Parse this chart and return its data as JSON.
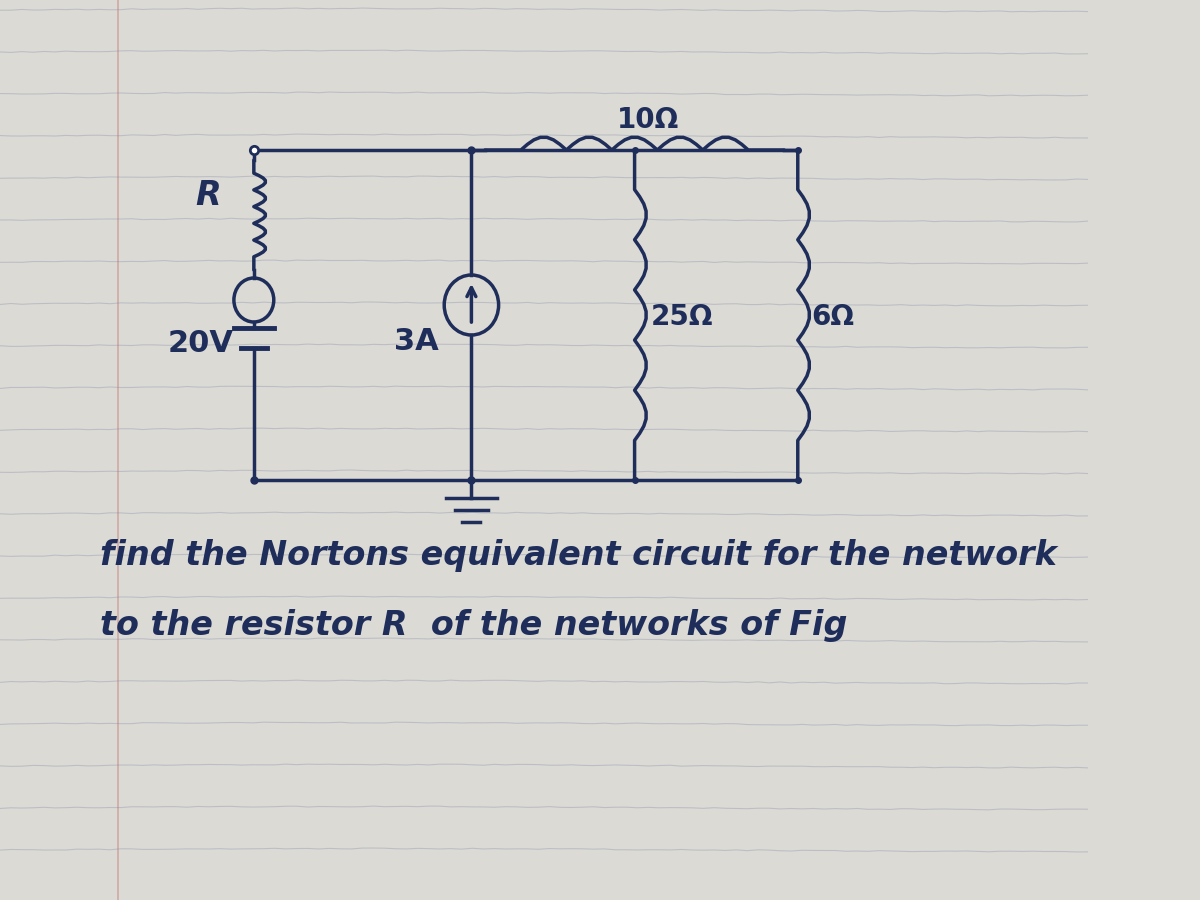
{
  "bg_color": "#dcdad4",
  "line_color": "#1e2d5a",
  "line_width": 2.5,
  "notebook_line_color": "#aab0be",
  "title_text1": "find the Nortons equivalent circuit for the network",
  "title_text2": "to the resistor R  of the networks of Fig",
  "label_R": "R",
  "label_20V": "20V",
  "label_3A": "3A",
  "label_10ohm": "10Ω",
  "label_25ohm": "25Ω",
  "label_6ohm": "6Ω",
  "font_size_labels": 20,
  "font_size_text": 24
}
